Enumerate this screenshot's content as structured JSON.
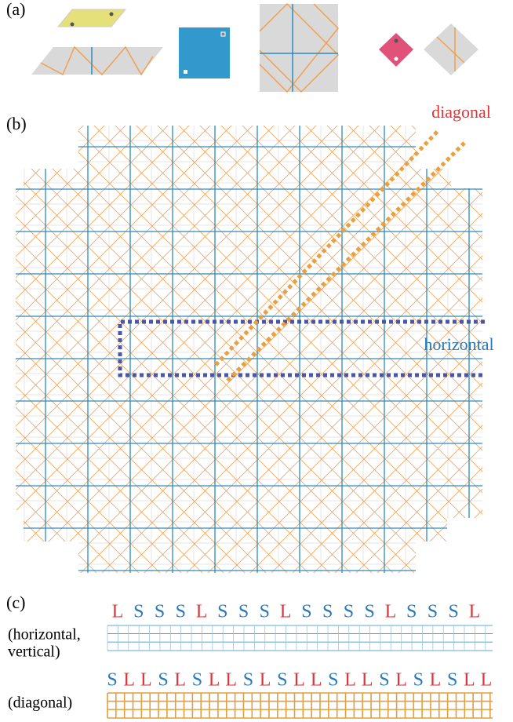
{
  "panels": {
    "a": "(a)",
    "b": "(b)",
    "c": "(c)"
  },
  "annotations": {
    "diagonal": "diagonal",
    "horizontal": "horizontal"
  },
  "rows": [
    {
      "label_lines": [
        "(horizontal,",
        "vertical)"
      ],
      "sequence": [
        "L",
        "S",
        "S",
        "S",
        "L",
        "S",
        "S",
        "S",
        "L",
        "S",
        "S",
        "S",
        "S",
        "L",
        "S",
        "S",
        "S",
        "L"
      ]
    },
    {
      "label_lines": [
        "(diagonal)"
      ],
      "sequence": [
        "S",
        "L",
        "L",
        "S",
        "L",
        "S",
        "L",
        "L",
        "S",
        "L",
        "S",
        "L",
        "L",
        "S",
        "L",
        "L",
        "S",
        "L",
        "S",
        "L",
        "S",
        "L",
        "L"
      ]
    }
  ],
  "letter_colors": {
    "L": "#d9373b",
    "S": "#2a7ab8"
  }
}
